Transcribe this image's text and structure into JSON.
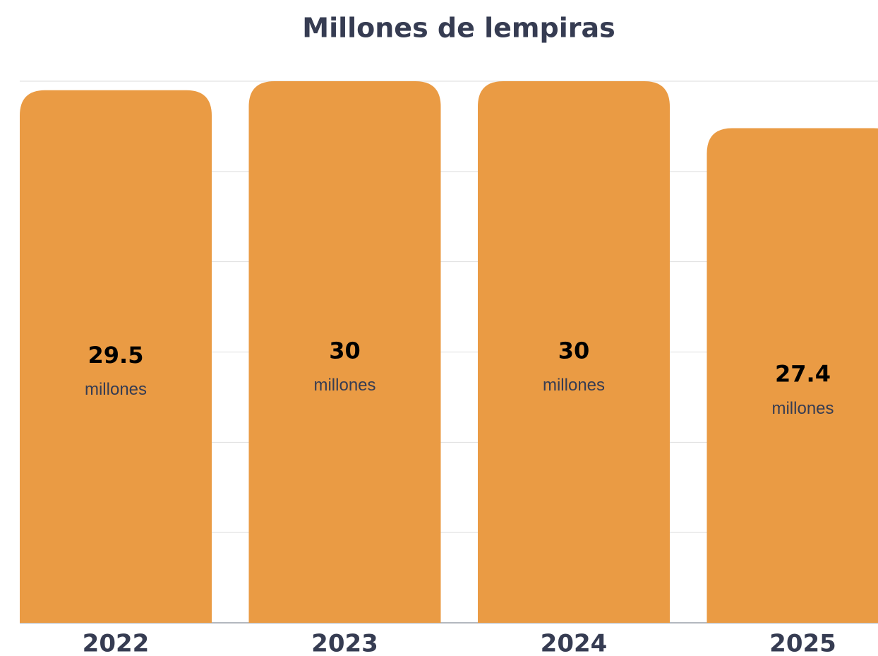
{
  "chart_data": {
    "type": "bar",
    "title": "Millones de lempiras",
    "categories": [
      "2022",
      "2023",
      "2024",
      "2025"
    ],
    "values": [
      29.5,
      30,
      30,
      27.4
    ],
    "unit_label": "millones",
    "color": "#ea9b44",
    "ylim": [
      0,
      30
    ],
    "yticks": [
      0,
      5,
      10,
      15,
      20,
      25,
      30
    ],
    "grid": true
  }
}
